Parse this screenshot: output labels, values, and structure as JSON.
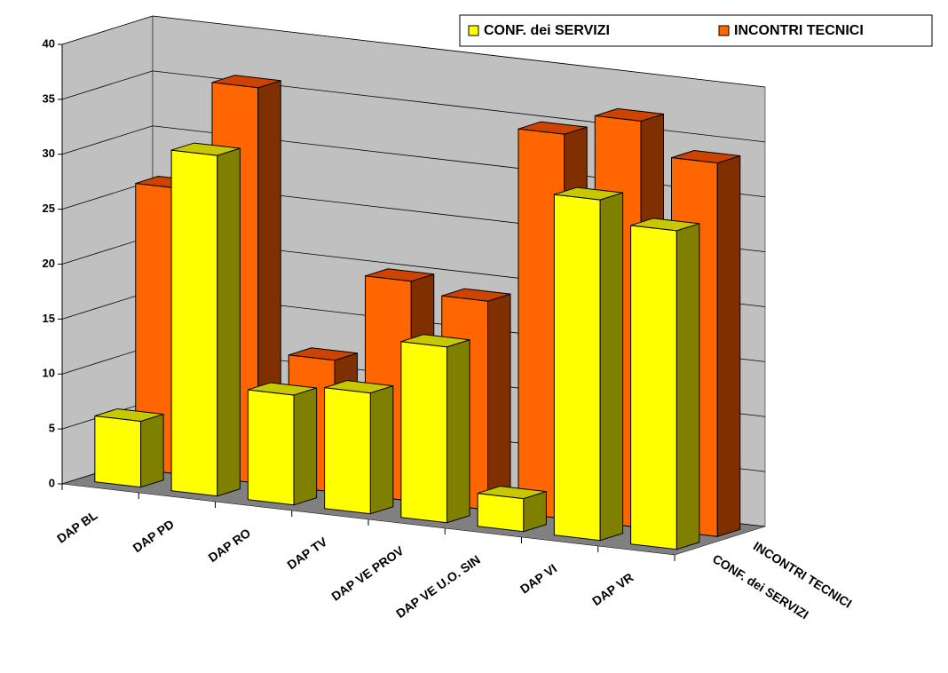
{
  "chart_data": {
    "type": "bar3d",
    "categories": [
      "DAP BL",
      "DAP PD",
      "DAP RO",
      "DAP TV",
      "DAP VE PROV",
      "DAP VE U.O. SIN",
      "DAP VI",
      "DAP VR"
    ],
    "series": [
      {
        "name": "CONF. dei SERVIZI",
        "color": "#ffff00",
        "values": [
          6,
          31,
          10,
          11,
          16,
          3,
          31,
          29
        ]
      },
      {
        "name": "INCONTRI TECNICI",
        "color": "#ff6600",
        "values": [
          26,
          36,
          12,
          20,
          19,
          35,
          37,
          34
        ]
      }
    ],
    "ylim": [
      0,
      40
    ],
    "yticks": [
      0,
      5,
      10,
      15,
      20,
      25,
      30,
      35,
      40
    ],
    "grid": true,
    "legend": "top-right"
  }
}
